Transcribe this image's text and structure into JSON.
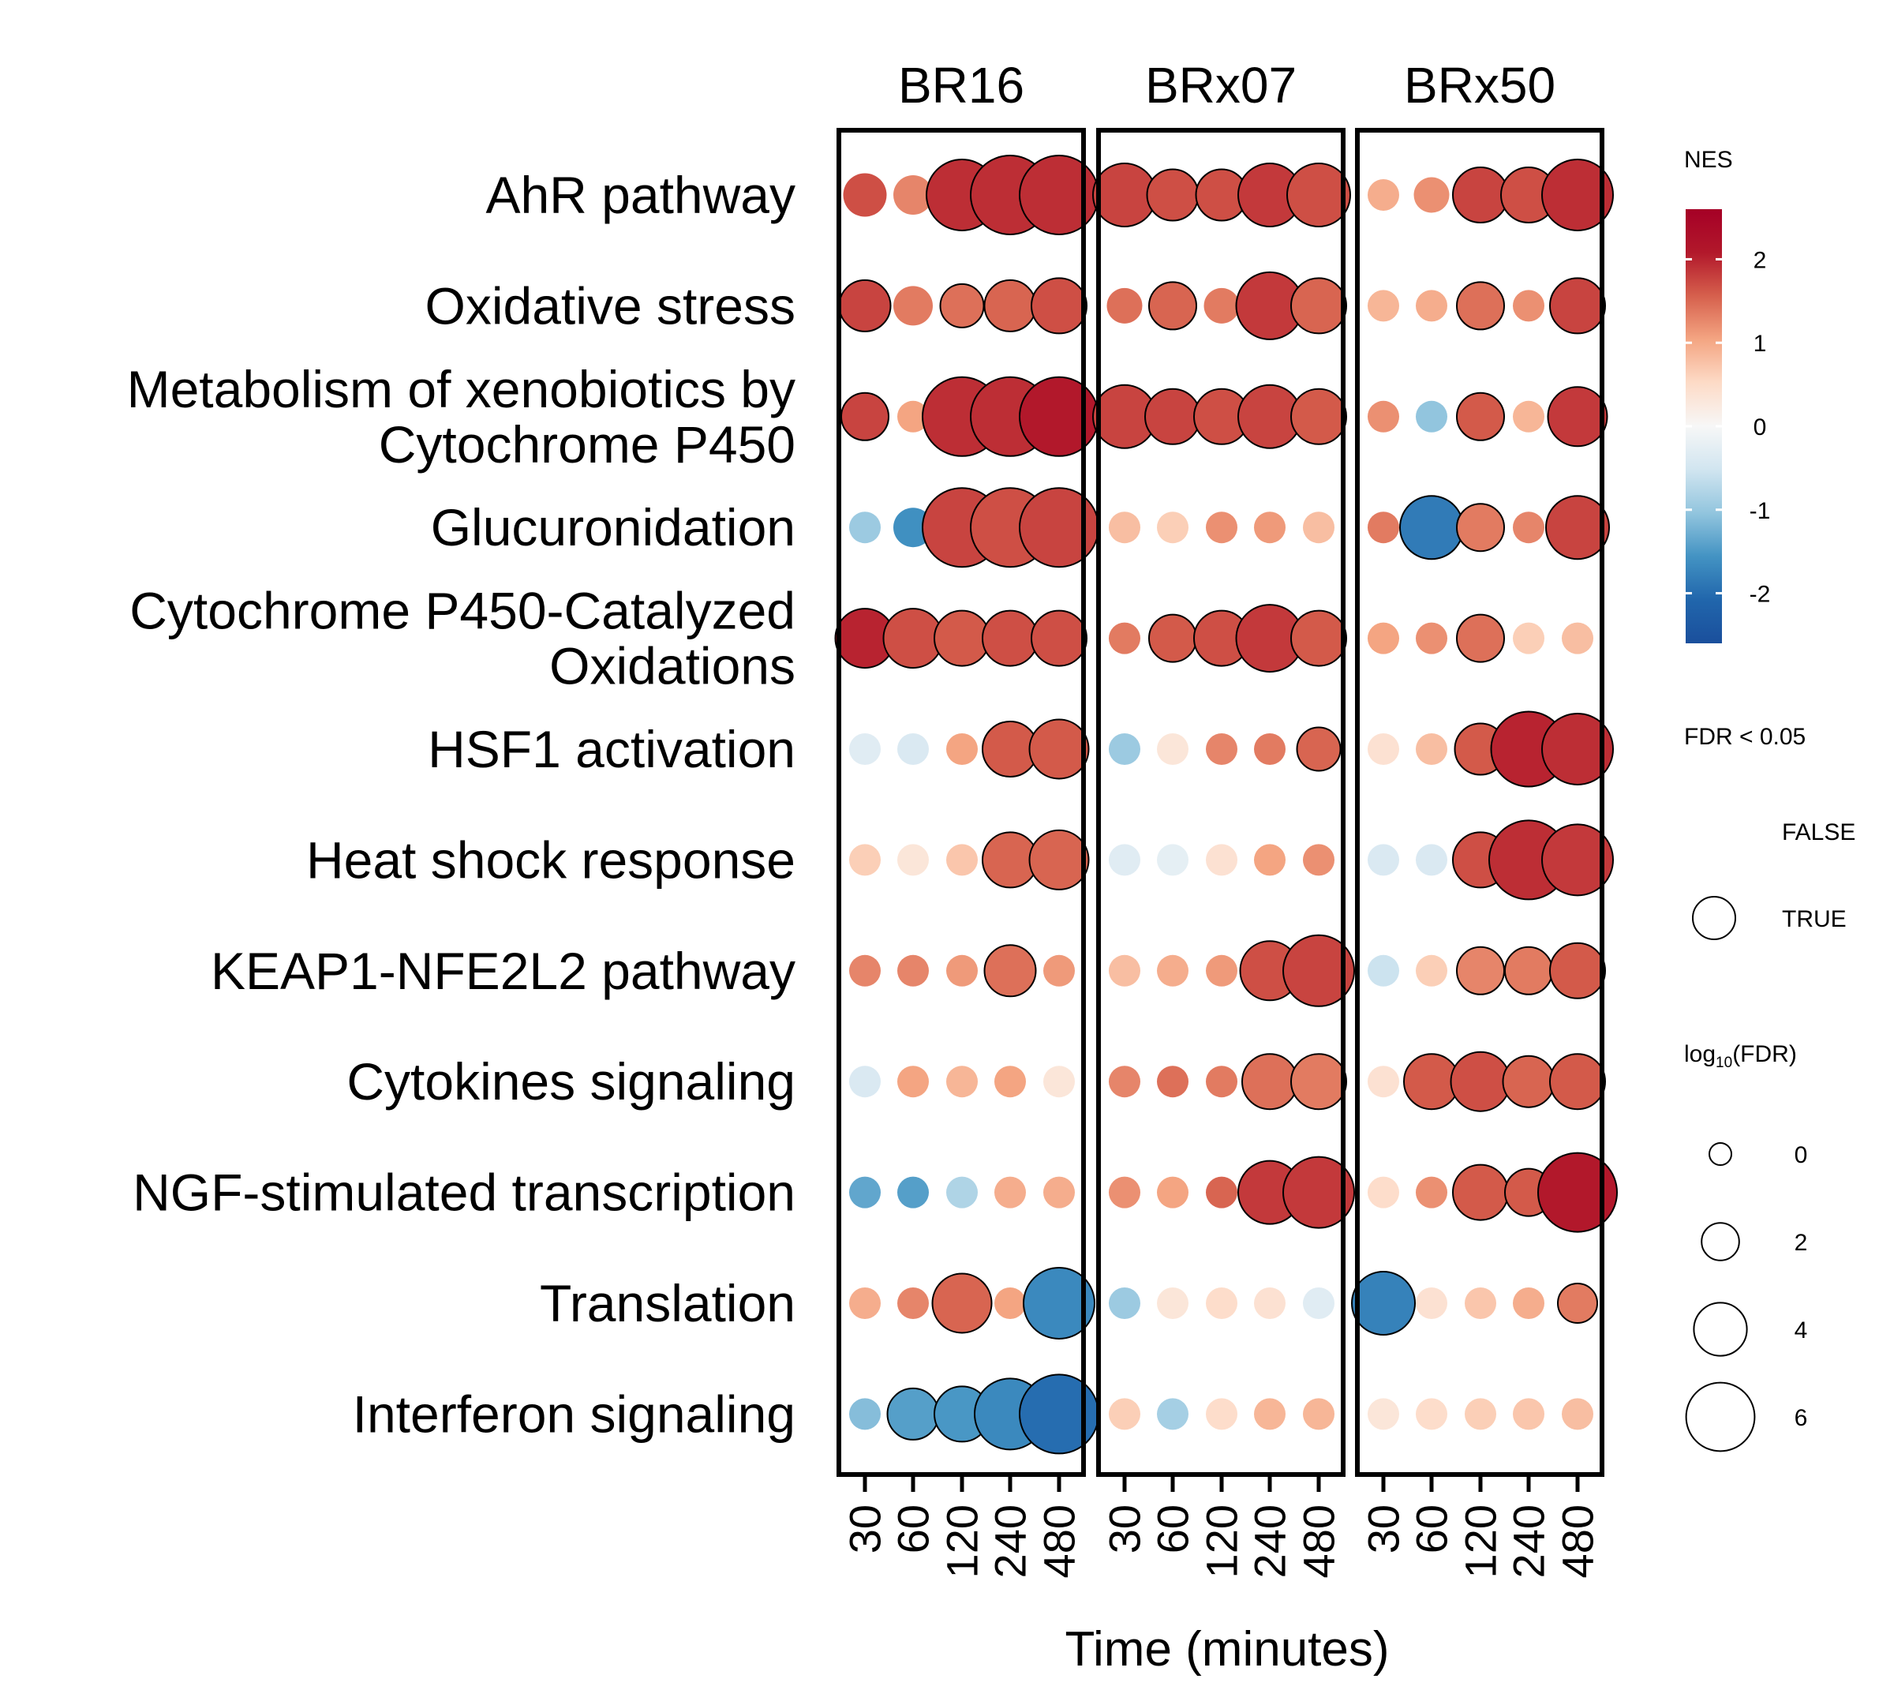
{
  "chart_data": {
    "type": "dot",
    "xlabel": "Time (minutes)",
    "x": [
      "30",
      "60",
      "120",
      "240",
      "480"
    ],
    "panels": [
      "BR16",
      "BRx07",
      "BRx50"
    ],
    "rows": [
      "AhR pathway",
      "Oxidative stress",
      "Metabolism of xenobiotics by\nCytochrome P450",
      "Glucuronidation",
      "Cytochrome P450-Catalyzed\nOxidations",
      "HSF1 activation",
      "Heat shock response",
      "KEAP1-NFE2L2 pathway",
      "Cytokines signaling",
      "NGF-stimulated transcription",
      "Translation",
      "Interferon signaling"
    ],
    "nes": [
      [
        [
          2.1,
          1.6,
          2.4,
          2.4,
          2.4
        ],
        [
          2.2,
          2.1,
          2.1,
          2.3,
          2.1
        ],
        [
          1.2,
          1.5,
          2.2,
          2.1,
          2.4
        ]
      ],
      [
        [
          2.2,
          1.7,
          1.8,
          1.9,
          2.1
        ],
        [
          1.8,
          1.9,
          1.7,
          2.3,
          1.9
        ],
        [
          1.1,
          1.2,
          1.8,
          1.5,
          2.2
        ]
      ],
      [
        [
          2.2,
          1.3,
          2.4,
          2.4,
          2.6
        ],
        [
          2.2,
          2.2,
          2.1,
          2.2,
          2.0
        ],
        [
          1.5,
          -1.3,
          2.0,
          1.1,
          2.3
        ]
      ],
      [
        [
          -1.2,
          -2.0,
          2.2,
          2.1,
          2.2
        ],
        [
          1.0,
          0.8,
          1.5,
          1.4,
          1.0
        ],
        [
          1.7,
          -2.3,
          1.7,
          1.6,
          2.2
        ]
      ],
      [
        [
          2.5,
          2.1,
          2.0,
          2.1,
          2.1
        ],
        [
          1.7,
          2.0,
          2.1,
          2.3,
          2.0
        ],
        [
          1.3,
          1.5,
          1.8,
          0.8,
          1.0
        ]
      ],
      [
        [
          -0.4,
          -0.5,
          1.3,
          2.0,
          2.0
        ],
        [
          -1.2,
          0.4,
          1.6,
          1.7,
          1.9
        ],
        [
          0.5,
          1.0,
          2.0,
          2.5,
          2.4
        ]
      ],
      [
        [
          0.8,
          0.4,
          0.9,
          1.9,
          1.9
        ],
        [
          -0.4,
          -0.3,
          0.5,
          1.3,
          1.5
        ],
        [
          -0.5,
          -0.5,
          2.1,
          2.4,
          2.3
        ]
      ],
      [
        [
          1.6,
          1.6,
          1.4,
          1.8,
          1.4
        ],
        [
          1.0,
          1.2,
          1.4,
          2.1,
          2.2
        ],
        [
          -0.7,
          0.8,
          1.6,
          1.7,
          2.0
        ]
      ],
      [
        [
          -0.5,
          1.3,
          1.1,
          1.3,
          0.4
        ],
        [
          1.6,
          1.8,
          1.7,
          1.8,
          1.7
        ],
        [
          0.5,
          2.0,
          2.1,
          1.9,
          2.0
        ]
      ],
      [
        [
          -1.7,
          -1.8,
          -1.0,
          1.2,
          1.2
        ],
        [
          1.5,
          1.3,
          1.9,
          2.3,
          2.3
        ],
        [
          0.6,
          1.5,
          2.0,
          2.0,
          2.6
        ]
      ],
      [
        [
          1.2,
          1.6,
          1.9,
          1.3,
          -2.1
        ],
        [
          -1.2,
          0.4,
          0.6,
          0.5,
          -0.4
        ],
        [
          -2.2,
          0.5,
          0.9,
          1.2,
          1.7
        ]
      ],
      [
        [
          -1.4,
          -1.8,
          -1.9,
          -2.1,
          -2.5
        ],
        [
          0.8,
          -1.1,
          0.6,
          1.1,
          1.1
        ],
        [
          0.4,
          0.6,
          0.8,
          0.9,
          1.0
        ]
      ]
    ],
    "log10_fdr": [
      [
        [
          1.5,
          1,
          5,
          6,
          6
        ],
        [
          4,
          2.5,
          2.5,
          4,
          4
        ],
        [
          0,
          0.5,
          3,
          3,
          5
        ]
      ],
      [
        [
          2.5,
          1,
          1.5,
          2.5,
          3
        ],
        [
          0.5,
          2,
          0.5,
          4.5,
          3
        ],
        [
          0,
          0,
          2,
          0,
          3
        ]
      ],
      [
        [
          2,
          0,
          6,
          6,
          6
        ],
        [
          4,
          3,
          3,
          4,
          3
        ],
        [
          0,
          0,
          2,
          0,
          3.5
        ]
      ],
      [
        [
          0,
          1,
          6,
          6,
          6
        ],
        [
          0,
          0,
          0,
          0,
          0
        ],
        [
          0,
          4,
          2,
          0,
          4
        ]
      ],
      [
        [
          3.5,
          3.5,
          3,
          3,
          3
        ],
        [
          0,
          2,
          3,
          4.5,
          3
        ],
        [
          0,
          0,
          2,
          0,
          0
        ]
      ],
      [
        [
          0,
          0,
          0,
          3,
          3.5
        ],
        [
          0,
          0,
          0,
          0,
          1.5
        ],
        [
          0,
          0,
          2.5,
          5.5,
          5
        ]
      ],
      [
        [
          0,
          0,
          0,
          3,
          3.5
        ],
        [
          0,
          0,
          0,
          0,
          0
        ],
        [
          0,
          0,
          3,
          6,
          5
        ]
      ],
      [
        [
          0,
          0,
          0,
          2.5,
          0
        ],
        [
          0,
          0,
          0,
          3.5,
          5
        ],
        [
          0,
          0,
          2,
          2,
          3
        ]
      ],
      [
        [
          0,
          0,
          0,
          0,
          0
        ],
        [
          0,
          0,
          0,
          3,
          3
        ],
        [
          0,
          3,
          3.5,
          2.5,
          3
        ]
      ],
      [
        [
          0,
          0,
          0,
          0,
          0
        ],
        [
          0,
          0,
          0,
          4,
          5
        ],
        [
          0,
          0,
          3,
          2,
          6
        ]
      ],
      [
        [
          0,
          0,
          3.5,
          0,
          5
        ],
        [
          0,
          0,
          0,
          0,
          0
        ],
        [
          4,
          0,
          0,
          0,
          1
        ]
      ],
      [
        [
          0,
          2.5,
          3,
          5,
          6
        ],
        [
          0,
          0,
          0,
          0,
          0
        ],
        [
          0,
          0,
          0,
          0,
          0
        ]
      ]
    ],
    "fdr_significant": [
      [
        [
          false,
          false,
          true,
          true,
          true
        ],
        [
          true,
          true,
          true,
          true,
          true
        ],
        [
          false,
          false,
          true,
          true,
          true
        ]
      ],
      [
        [
          true,
          false,
          true,
          true,
          true
        ],
        [
          false,
          true,
          false,
          true,
          true
        ],
        [
          false,
          false,
          true,
          false,
          true
        ]
      ],
      [
        [
          true,
          false,
          true,
          true,
          true
        ],
        [
          true,
          true,
          true,
          true,
          true
        ],
        [
          false,
          false,
          true,
          false,
          true
        ]
      ],
      [
        [
          false,
          false,
          true,
          true,
          true
        ],
        [
          false,
          false,
          false,
          false,
          false
        ],
        [
          false,
          true,
          true,
          false,
          true
        ]
      ],
      [
        [
          true,
          true,
          true,
          true,
          true
        ],
        [
          false,
          true,
          true,
          true,
          true
        ],
        [
          false,
          false,
          true,
          false,
          false
        ]
      ],
      [
        [
          false,
          false,
          false,
          true,
          true
        ],
        [
          false,
          false,
          false,
          false,
          true
        ],
        [
          false,
          false,
          true,
          true,
          true
        ]
      ],
      [
        [
          false,
          false,
          false,
          true,
          true
        ],
        [
          false,
          false,
          false,
          false,
          false
        ],
        [
          false,
          false,
          true,
          true,
          true
        ]
      ],
      [
        [
          false,
          false,
          false,
          true,
          false
        ],
        [
          false,
          false,
          false,
          true,
          true
        ],
        [
          false,
          false,
          true,
          true,
          true
        ]
      ],
      [
        [
          false,
          false,
          false,
          false,
          false
        ],
        [
          false,
          false,
          false,
          true,
          true
        ],
        [
          false,
          true,
          true,
          true,
          true
        ]
      ],
      [
        [
          false,
          false,
          false,
          false,
          false
        ],
        [
          false,
          false,
          false,
          true,
          true
        ],
        [
          false,
          false,
          true,
          true,
          true
        ]
      ],
      [
        [
          false,
          false,
          true,
          false,
          true
        ],
        [
          false,
          false,
          false,
          false,
          false
        ],
        [
          true,
          false,
          false,
          false,
          true
        ]
      ],
      [
        [
          false,
          true,
          true,
          true,
          true
        ],
        [
          false,
          false,
          false,
          false,
          false
        ],
        [
          false,
          false,
          false,
          false,
          false
        ]
      ]
    ],
    "color_scale": {
      "title": "NES",
      "range": [
        -2.6,
        2.6
      ],
      "ticks": [
        -2,
        -1,
        0,
        1,
        2
      ],
      "tick_labels": [
        "-2",
        "-1",
        "0",
        "1",
        "2"
      ],
      "colors": [
        "#2166ac",
        "#4393c3",
        "#92c5de",
        "#d1e5f0",
        "#f7f7f7",
        "#fddbc7",
        "#f4a582",
        "#d6604d",
        "#b2182b"
      ],
      "low_end": "#1a4f9c",
      "high_end": "#a50026"
    },
    "significance_legend": {
      "title": "FDR < 0.05",
      "labels": [
        "FALSE",
        "TRUE"
      ]
    },
    "size_legend": {
      "title_base": "log",
      "title_sub": "10",
      "title_rest": "(FDR)",
      "values": [
        0,
        2,
        4,
        6
      ],
      "labels": [
        "0",
        "2",
        "4",
        "6"
      ]
    }
  }
}
